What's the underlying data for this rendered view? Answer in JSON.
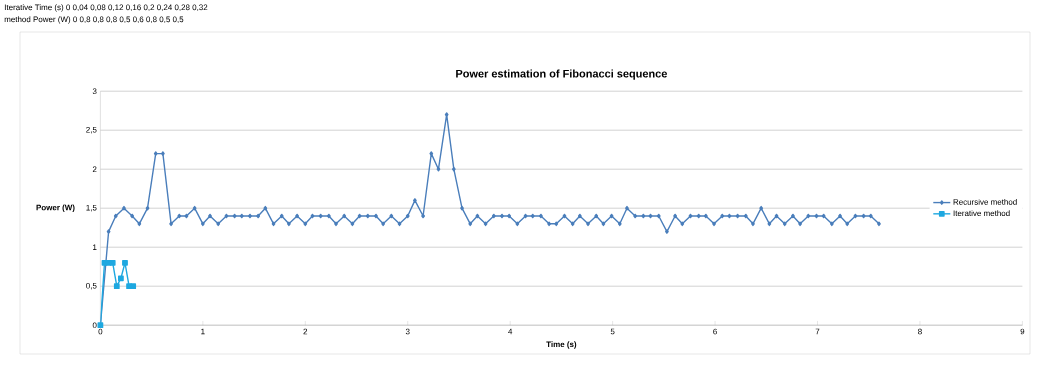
{
  "chart_data": {
    "type": "line",
    "title": "Power estimation of Fibonacci sequence",
    "xlabel": "Time (s)",
    "ylabel": "Power (W)",
    "annotations": [
      "Iterative   Time (s)   0   0,04   0,08   0,12   0,16   0,2   0,24   0,28   0,32",
      "method   Power (W)   0   0,8   0,8   0,8   0,5   0,6   0,8   0,5   0,5"
    ],
    "xlim": [
      0,
      9
    ],
    "xticks": [
      0,
      1,
      2,
      3,
      4,
      5,
      6,
      7,
      8,
      9
    ],
    "ylim": [
      0,
      3
    ],
    "yticks": [
      0,
      {
        "value": 0.5,
        "label": "0,5"
      },
      1,
      {
        "value": 1.5,
        "label": "1,5"
      },
      2,
      {
        "value": 2.5,
        "label": "2,5"
      },
      3
    ],
    "grid": "y",
    "legend": "right",
    "line_style": "solid",
    "series": [
      {
        "name": "Recursive method",
        "color": "#4a7ebb",
        "marker": "diamond",
        "x": [
          0,
          0.08,
          0.15,
          0.23,
          0.31,
          0.38,
          0.46,
          0.54,
          0.61,
          0.69,
          0.77,
          0.84,
          0.92,
          1.0,
          1.07,
          1.15,
          1.23,
          1.31,
          1.38,
          1.46,
          1.54,
          1.61,
          1.69,
          1.77,
          1.84,
          1.92,
          2.0,
          2.07,
          2.15,
          2.23,
          2.3,
          2.38,
          2.46,
          2.53,
          2.61,
          2.69,
          2.76,
          2.84,
          2.92,
          3.0,
          3.07,
          3.15,
          3.23,
          3.3,
          3.38,
          3.45,
          3.53,
          3.61,
          3.68,
          3.76,
          3.84,
          3.92,
          3.99,
          4.07,
          4.15,
          4.22,
          4.3,
          4.38,
          4.45,
          4.53,
          4.61,
          4.68,
          4.76,
          4.84,
          4.91,
          4.99,
          5.07,
          5.14,
          5.22,
          5.3,
          5.37,
          5.45,
          5.53,
          5.61,
          5.68,
          5.76,
          5.84,
          5.91,
          5.99,
          6.07,
          6.14,
          6.22,
          6.3,
          6.37,
          6.45,
          6.53,
          6.6,
          6.68,
          6.76,
          6.83,
          6.91,
          6.99,
          7.06,
          7.14,
          7.22,
          7.29,
          7.37,
          7.45,
          7.52,
          7.6
        ],
        "values": [
          0,
          1.2,
          1.4,
          1.5,
          1.4,
          1.3,
          1.5,
          2.2,
          2.2,
          1.3,
          1.4,
          1.4,
          1.5,
          1.3,
          1.4,
          1.3,
          1.4,
          1.4,
          1.4,
          1.4,
          1.4,
          1.5,
          1.3,
          1.4,
          1.3,
          1.4,
          1.3,
          1.4,
          1.4,
          1.4,
          1.3,
          1.4,
          1.3,
          1.4,
          1.4,
          1.4,
          1.3,
          1.4,
          1.3,
          1.4,
          1.6,
          1.4,
          2.2,
          2.0,
          2.7,
          2.0,
          1.5,
          1.3,
          1.4,
          1.3,
          1.4,
          1.4,
          1.4,
          1.3,
          1.4,
          1.4,
          1.4,
          1.3,
          1.3,
          1.4,
          1.3,
          1.4,
          1.3,
          1.4,
          1.3,
          1.4,
          1.3,
          1.5,
          1.4,
          1.4,
          1.4,
          1.4,
          1.2,
          1.4,
          1.3,
          1.4,
          1.4,
          1.4,
          1.3,
          1.4,
          1.4,
          1.4,
          1.4,
          1.3,
          1.5,
          1.3,
          1.4,
          1.3,
          1.4,
          1.3,
          1.4,
          1.4,
          1.4,
          1.3,
          1.4,
          1.3,
          1.4,
          1.4,
          1.4,
          1.3
        ]
      },
      {
        "name": "Iterative method",
        "color": "#1ea8e0",
        "marker": "square",
        "x": [
          0,
          0.04,
          0.08,
          0.12,
          0.16,
          0.2,
          0.24,
          0.28,
          0.32
        ],
        "values": [
          0,
          0.8,
          0.8,
          0.8,
          0.5,
          0.6,
          0.8,
          0.5,
          0.5
        ]
      }
    ]
  }
}
